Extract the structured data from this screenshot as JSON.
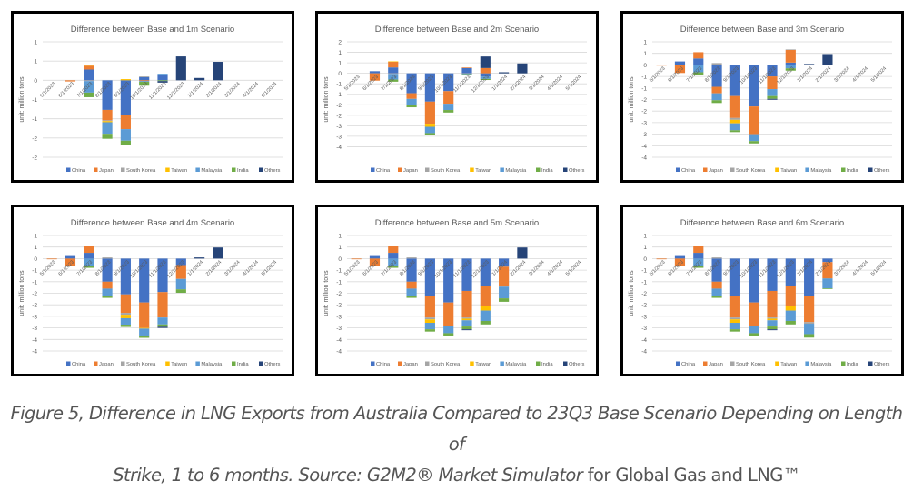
{
  "caption": {
    "line1_italic": "Figure 5, Difference in LNG Exports from Australia Compared to 23Q3 Base Scenario Depending on Length of",
    "line2_italic": "Strike, 1 to 6 months. Source: G2M2® Market Simulator",
    "line2_normal": " for Global Gas and LNG™"
  },
  "colors": {
    "China": "#4472C4",
    "Japan": "#ED7D31",
    "South Korea": "#A5A5A5",
    "Taiwan": "#FFC000",
    "Malaysia": "#5B9BD5",
    "India": "#70AD47",
    "Others": "#264478"
  },
  "chart_data": [
    {
      "type": "bar",
      "stacked": true,
      "title": "Difference between Base and 1m Scenario",
      "ylabel": "unit: million tons",
      "ylim": [
        -2,
        1
      ],
      "ytick_values": [
        1,
        0.5,
        0,
        -0.5,
        -1,
        -1.5,
        -2
      ],
      "ytick_labels": [
        "1",
        "1",
        "0",
        "-1",
        "-1",
        "-2",
        "-2"
      ],
      "grid": true,
      "legend": "bottom",
      "categories": [
        "5/1/2023",
        "6/1/2023",
        "7/1/2023",
        "8/1/2023",
        "9/1/2023",
        "10/1/2023",
        "11/1/2023",
        "12/1/2023",
        "1/1/2024",
        "2/1/2024",
        "3/1/2024",
        "4/1/2024",
        "5/1/2024"
      ],
      "series": [
        {
          "name": "China",
          "values": [
            0,
            0,
            0.28,
            -0.77,
            -0.9,
            0.08,
            0.15,
            0,
            0,
            0,
            0,
            0,
            0
          ]
        },
        {
          "name": "Japan",
          "values": [
            0,
            -0.03,
            0.1,
            -0.27,
            -0.37,
            -0.02,
            0,
            0,
            0,
            0,
            0,
            0,
            0
          ]
        },
        {
          "name": "South Korea",
          "values": [
            0,
            0,
            -0.02,
            -0.02,
            0,
            0.02,
            0,
            0,
            0,
            0,
            0,
            0,
            0
          ]
        },
        {
          "name": "Taiwan",
          "values": [
            0,
            0,
            0.02,
            -0.03,
            0.03,
            0,
            0,
            0,
            0,
            0,
            0,
            0,
            0
          ]
        },
        {
          "name": "Malaysia",
          "values": [
            0,
            0,
            -0.3,
            -0.3,
            -0.3,
            -0.02,
            0.02,
            0,
            0,
            0,
            0,
            0,
            0
          ]
        },
        {
          "name": "India",
          "values": [
            0,
            0,
            -0.12,
            -0.13,
            -0.12,
            -0.1,
            -0.02,
            0,
            0,
            0,
            0,
            0,
            0
          ]
        },
        {
          "name": "Others",
          "values": [
            0,
            0,
            0,
            0,
            0,
            0,
            -0.04,
            0.62,
            0.06,
            0.48,
            0,
            0,
            0
          ]
        }
      ]
    },
    {
      "type": "bar",
      "stacked": true,
      "title": "Difference between Base and 2m Scenario",
      "ylabel": "unit: million tons",
      "ylim": [
        -4,
        1.5
      ],
      "ytick_values": [
        1.5,
        1,
        0.5,
        0,
        -0.5,
        -1,
        -1.5,
        -2,
        -2.5,
        -3,
        -3.5
      ],
      "ytick_labels": [
        "2",
        "1",
        "1",
        "0",
        "-1",
        "-1",
        "-2",
        "-2",
        "-3",
        "-3",
        "-4"
      ],
      "grid": true,
      "legend": "bottom",
      "categories": [
        "5/1/2023",
        "6/1/2023",
        "7/1/2023",
        "8/1/2023",
        "9/1/2023",
        "10/1/2023",
        "11/1/2023",
        "12/1/2023",
        "1/1/2024",
        "2/1/2024",
        "3/1/2024",
        "4/1/2024",
        "5/1/2024"
      ],
      "series": [
        {
          "name": "China",
          "values": [
            0,
            0.1,
            0.28,
            -0.95,
            -1.35,
            -0.85,
            0.25,
            -0.15,
            0,
            0,
            0,
            0,
            0
          ]
        },
        {
          "name": "Japan",
          "values": [
            0,
            -0.35,
            0.27,
            -0.27,
            -1.05,
            -0.6,
            0.03,
            0.25,
            0,
            0,
            0,
            0,
            0
          ]
        },
        {
          "name": "South Korea",
          "values": [
            0,
            0,
            -0.03,
            0,
            0,
            0,
            -0.02,
            0,
            0,
            0,
            0,
            0,
            0
          ]
        },
        {
          "name": "Taiwan",
          "values": [
            0,
            0,
            0.02,
            0,
            -0.15,
            0,
            0,
            0,
            0,
            0,
            0,
            0,
            0
          ]
        },
        {
          "name": "Malaysia",
          "values": [
            0,
            0,
            -0.27,
            -0.3,
            -0.3,
            -0.3,
            -0.02,
            -0.12,
            0,
            0,
            0,
            0,
            0
          ]
        },
        {
          "name": "India",
          "values": [
            0,
            0,
            -0.1,
            -0.1,
            -0.1,
            -0.12,
            -0.02,
            -0.05,
            0,
            0,
            0,
            0,
            0
          ]
        },
        {
          "name": "Others",
          "values": [
            0,
            0,
            0,
            0,
            0,
            0,
            -0.04,
            0.55,
            0.05,
            0.47,
            0,
            0,
            0
          ]
        }
      ]
    },
    {
      "type": "bar",
      "stacked": true,
      "title": "Difference between Base and 3m Scenario",
      "ylabel": "unit: million tons",
      "ylim": [
        -4,
        1
      ],
      "ytick_values": [
        1,
        0.5,
        0,
        -0.5,
        -1,
        -1.5,
        -2,
        -2.5,
        -3,
        -3.5,
        -4
      ],
      "ytick_labels": [
        "1",
        "1",
        "0",
        "-1",
        "-1",
        "-2",
        "-2",
        "-3",
        "-3",
        "-4",
        "-4"
      ],
      "grid": true,
      "legend": "bottom",
      "categories": [
        "5/1/2023",
        "6/1/2023",
        "7/1/2023",
        "8/1/2023",
        "9/1/2023",
        "10/1/2023",
        "11/1/2023",
        "12/1/2023",
        "1/1/2024",
        "2/1/2024",
        "3/1/2024",
        "4/1/2024",
        "5/1/2024"
      ],
      "series": [
        {
          "name": "China",
          "values": [
            0,
            0.15,
            0.28,
            -0.95,
            -1.35,
            -1.8,
            -0.5,
            0.1,
            0,
            0,
            0,
            0,
            0
          ]
        },
        {
          "name": "Japan",
          "values": [
            -0.03,
            -0.35,
            0.27,
            -0.28,
            -0.95,
            -1.2,
            -0.55,
            0.55,
            0,
            0,
            0,
            0,
            0
          ]
        },
        {
          "name": "South Korea",
          "values": [
            0,
            0,
            -0.02,
            0.08,
            -0.08,
            0,
            0,
            0.02,
            0,
            0,
            0,
            0,
            0
          ]
        },
        {
          "name": "Taiwan",
          "values": [
            0,
            0,
            0,
            0,
            -0.15,
            0,
            0,
            0,
            0,
            0,
            0,
            0,
            0
          ]
        },
        {
          "name": "Malaysia",
          "values": [
            0,
            0,
            -0.3,
            -0.3,
            -0.3,
            -0.3,
            -0.3,
            -0.15,
            0,
            0,
            0,
            0,
            0
          ]
        },
        {
          "name": "India",
          "values": [
            0,
            0,
            -0.12,
            -0.12,
            -0.08,
            -0.1,
            -0.12,
            -0.1,
            0,
            0,
            0,
            0,
            0
          ]
        },
        {
          "name": "Others",
          "values": [
            0,
            0,
            0,
            0,
            0,
            0,
            -0.04,
            0,
            0.04,
            0.47,
            0,
            0,
            0
          ]
        }
      ]
    },
    {
      "type": "bar",
      "stacked": true,
      "title": "Difference between Base and 4m Scenario",
      "ylabel": "unit: million tons",
      "ylim": [
        -4,
        1
      ],
      "ytick_values": [
        1,
        0.5,
        0,
        -0.5,
        -1,
        -1.5,
        -2,
        -2.5,
        -3,
        -3.5,
        -4
      ],
      "ytick_labels": [
        "1",
        "1",
        "0",
        "-1",
        "-1",
        "-2",
        "-2",
        "-3",
        "-3",
        "-4",
        "-4"
      ],
      "grid": true,
      "legend": "bottom",
      "categories": [
        "5/1/2023",
        "6/1/2023",
        "7/1/2023",
        "8/1/2023",
        "9/1/2023",
        "10/1/2023",
        "11/1/2023",
        "12/1/2023",
        "1/1/2024",
        "2/1/2024",
        "3/1/2024",
        "4/1/2024",
        "5/1/2024"
      ],
      "series": [
        {
          "name": "China",
          "values": [
            0,
            0.15,
            0.25,
            -1.0,
            -1.55,
            -1.9,
            -1.45,
            -0.28,
            0,
            0,
            0,
            0,
            0
          ]
        },
        {
          "name": "Japan",
          "values": [
            -0.03,
            -0.33,
            0.28,
            -0.3,
            -0.8,
            -1.1,
            -1.1,
            -0.6,
            0,
            0,
            0,
            0,
            0
          ]
        },
        {
          "name": "South Korea",
          "values": [
            0,
            0,
            0,
            0.05,
            -0.08,
            0,
            0,
            0,
            0,
            0,
            0,
            0,
            0
          ]
        },
        {
          "name": "Taiwan",
          "values": [
            0,
            0,
            0,
            0,
            -0.15,
            -0.03,
            0,
            0,
            0,
            0,
            0,
            0,
            0
          ]
        },
        {
          "name": "Malaysia",
          "values": [
            0,
            0,
            -0.3,
            -0.3,
            -0.28,
            -0.3,
            -0.3,
            -0.45,
            0,
            0,
            0,
            0,
            0
          ]
        },
        {
          "name": "India",
          "values": [
            0,
            0,
            -0.1,
            -0.1,
            -0.1,
            -0.1,
            -0.1,
            -0.15,
            0,
            0,
            0,
            0,
            0
          ]
        },
        {
          "name": "Others",
          "values": [
            0,
            0,
            0,
            0,
            0,
            0,
            -0.05,
            0,
            0.05,
            0.48,
            0,
            0,
            0
          ]
        }
      ]
    },
    {
      "type": "bar",
      "stacked": true,
      "title": "Difference between Base and 5m Scenario",
      "ylabel": "unit: million tons",
      "ylim": [
        -4,
        1
      ],
      "ytick_values": [
        1,
        0.5,
        0,
        -0.5,
        -1,
        -1.5,
        -2,
        -2.5,
        -3,
        -3.5,
        -4
      ],
      "ytick_labels": [
        "1",
        "1",
        "0",
        "-1",
        "-1",
        "-2",
        "-2",
        "-3",
        "-3",
        "-4",
        "-4"
      ],
      "grid": true,
      "legend": "bottom",
      "categories": [
        "5/1/2023",
        "6/1/2023",
        "7/1/2023",
        "8/1/2023",
        "9/1/2023",
        "10/1/2023",
        "11/1/2023",
        "12/1/2023",
        "1/1/2024",
        "2/1/2024",
        "3/1/2024",
        "4/1/2024",
        "5/1/2024"
      ],
      "series": [
        {
          "name": "China",
          "values": [
            0,
            0.15,
            0.25,
            -1.0,
            -1.6,
            -1.9,
            -1.4,
            -1.2,
            -0.35,
            0,
            0,
            0,
            0
          ]
        },
        {
          "name": "Japan",
          "values": [
            -0.03,
            -0.33,
            0.28,
            -0.3,
            -0.95,
            -1.0,
            -1.15,
            -0.85,
            -0.82,
            0,
            0,
            0,
            0
          ]
        },
        {
          "name": "South Korea",
          "values": [
            0,
            0,
            0,
            0.05,
            -0.08,
            -0.03,
            -0.05,
            0,
            -0.05,
            0,
            0,
            0,
            0
          ]
        },
        {
          "name": "Taiwan",
          "values": [
            0,
            0,
            0,
            0,
            -0.15,
            0,
            -0.07,
            -0.2,
            0,
            0,
            0,
            0,
            0
          ]
        },
        {
          "name": "Malaysia",
          "values": [
            0,
            0,
            -0.3,
            -0.3,
            -0.28,
            -0.3,
            -0.27,
            -0.45,
            -0.5,
            0,
            0,
            0,
            0
          ]
        },
        {
          "name": "India",
          "values": [
            0,
            0,
            -0.1,
            -0.1,
            -0.1,
            -0.1,
            -0.12,
            -0.15,
            -0.15,
            0,
            0,
            0,
            0
          ]
        },
        {
          "name": "Others",
          "values": [
            0,
            0,
            0,
            0,
            0,
            0,
            -0.04,
            0,
            0,
            0.48,
            0,
            0,
            0
          ]
        }
      ]
    },
    {
      "type": "bar",
      "stacked": true,
      "title": "Difference between Base and 6m Scenario",
      "ylabel": "unit: million tons",
      "ylim": [
        -4,
        1
      ],
      "ytick_values": [
        1,
        0.5,
        0,
        -0.5,
        -1,
        -1.5,
        -2,
        -2.5,
        -3,
        -3.5,
        -4
      ],
      "ytick_labels": [
        "1",
        "1",
        "0",
        "-1",
        "-1",
        "-2",
        "-2",
        "-3",
        "-3",
        "-4",
        "-4"
      ],
      "grid": true,
      "legend": "bottom",
      "categories": [
        "5/1/2023",
        "6/1/2023",
        "7/1/2023",
        "8/1/2023",
        "9/1/2023",
        "10/1/2023",
        "11/1/2023",
        "12/1/2023",
        "1/1/2024",
        "2/1/2024",
        "3/1/2024",
        "4/1/2024",
        "5/1/2024"
      ],
      "series": [
        {
          "name": "China",
          "values": [
            0,
            0.15,
            0.25,
            -1.0,
            -1.6,
            -1.9,
            -1.4,
            -1.2,
            -1.6,
            -0.15,
            0,
            0,
            0
          ]
        },
        {
          "name": "Japan",
          "values": [
            -0.03,
            -0.33,
            0.28,
            -0.3,
            -0.95,
            -1.0,
            -1.15,
            -0.85,
            -1.15,
            -0.7,
            0,
            0,
            0
          ]
        },
        {
          "name": "South Korea",
          "values": [
            0,
            0,
            0,
            0.05,
            -0.08,
            -0.03,
            -0.05,
            0,
            -0.07,
            -0.02,
            0,
            0,
            0
          ]
        },
        {
          "name": "Taiwan",
          "values": [
            0,
            0,
            0,
            0,
            -0.15,
            0,
            -0.07,
            -0.2,
            0,
            0,
            0,
            0,
            0
          ]
        },
        {
          "name": "Malaysia",
          "values": [
            0,
            0,
            -0.3,
            -0.3,
            -0.28,
            -0.3,
            -0.27,
            -0.45,
            -0.45,
            -0.42,
            0,
            0,
            0
          ]
        },
        {
          "name": "India",
          "values": [
            0,
            0,
            -0.1,
            -0.1,
            -0.1,
            -0.1,
            -0.12,
            -0.15,
            -0.15,
            -0.03,
            0,
            0,
            0
          ]
        },
        {
          "name": "Others",
          "values": [
            0,
            0,
            0,
            0,
            0,
            0,
            -0.04,
            0,
            0,
            0,
            0,
            0,
            0
          ]
        }
      ]
    }
  ]
}
